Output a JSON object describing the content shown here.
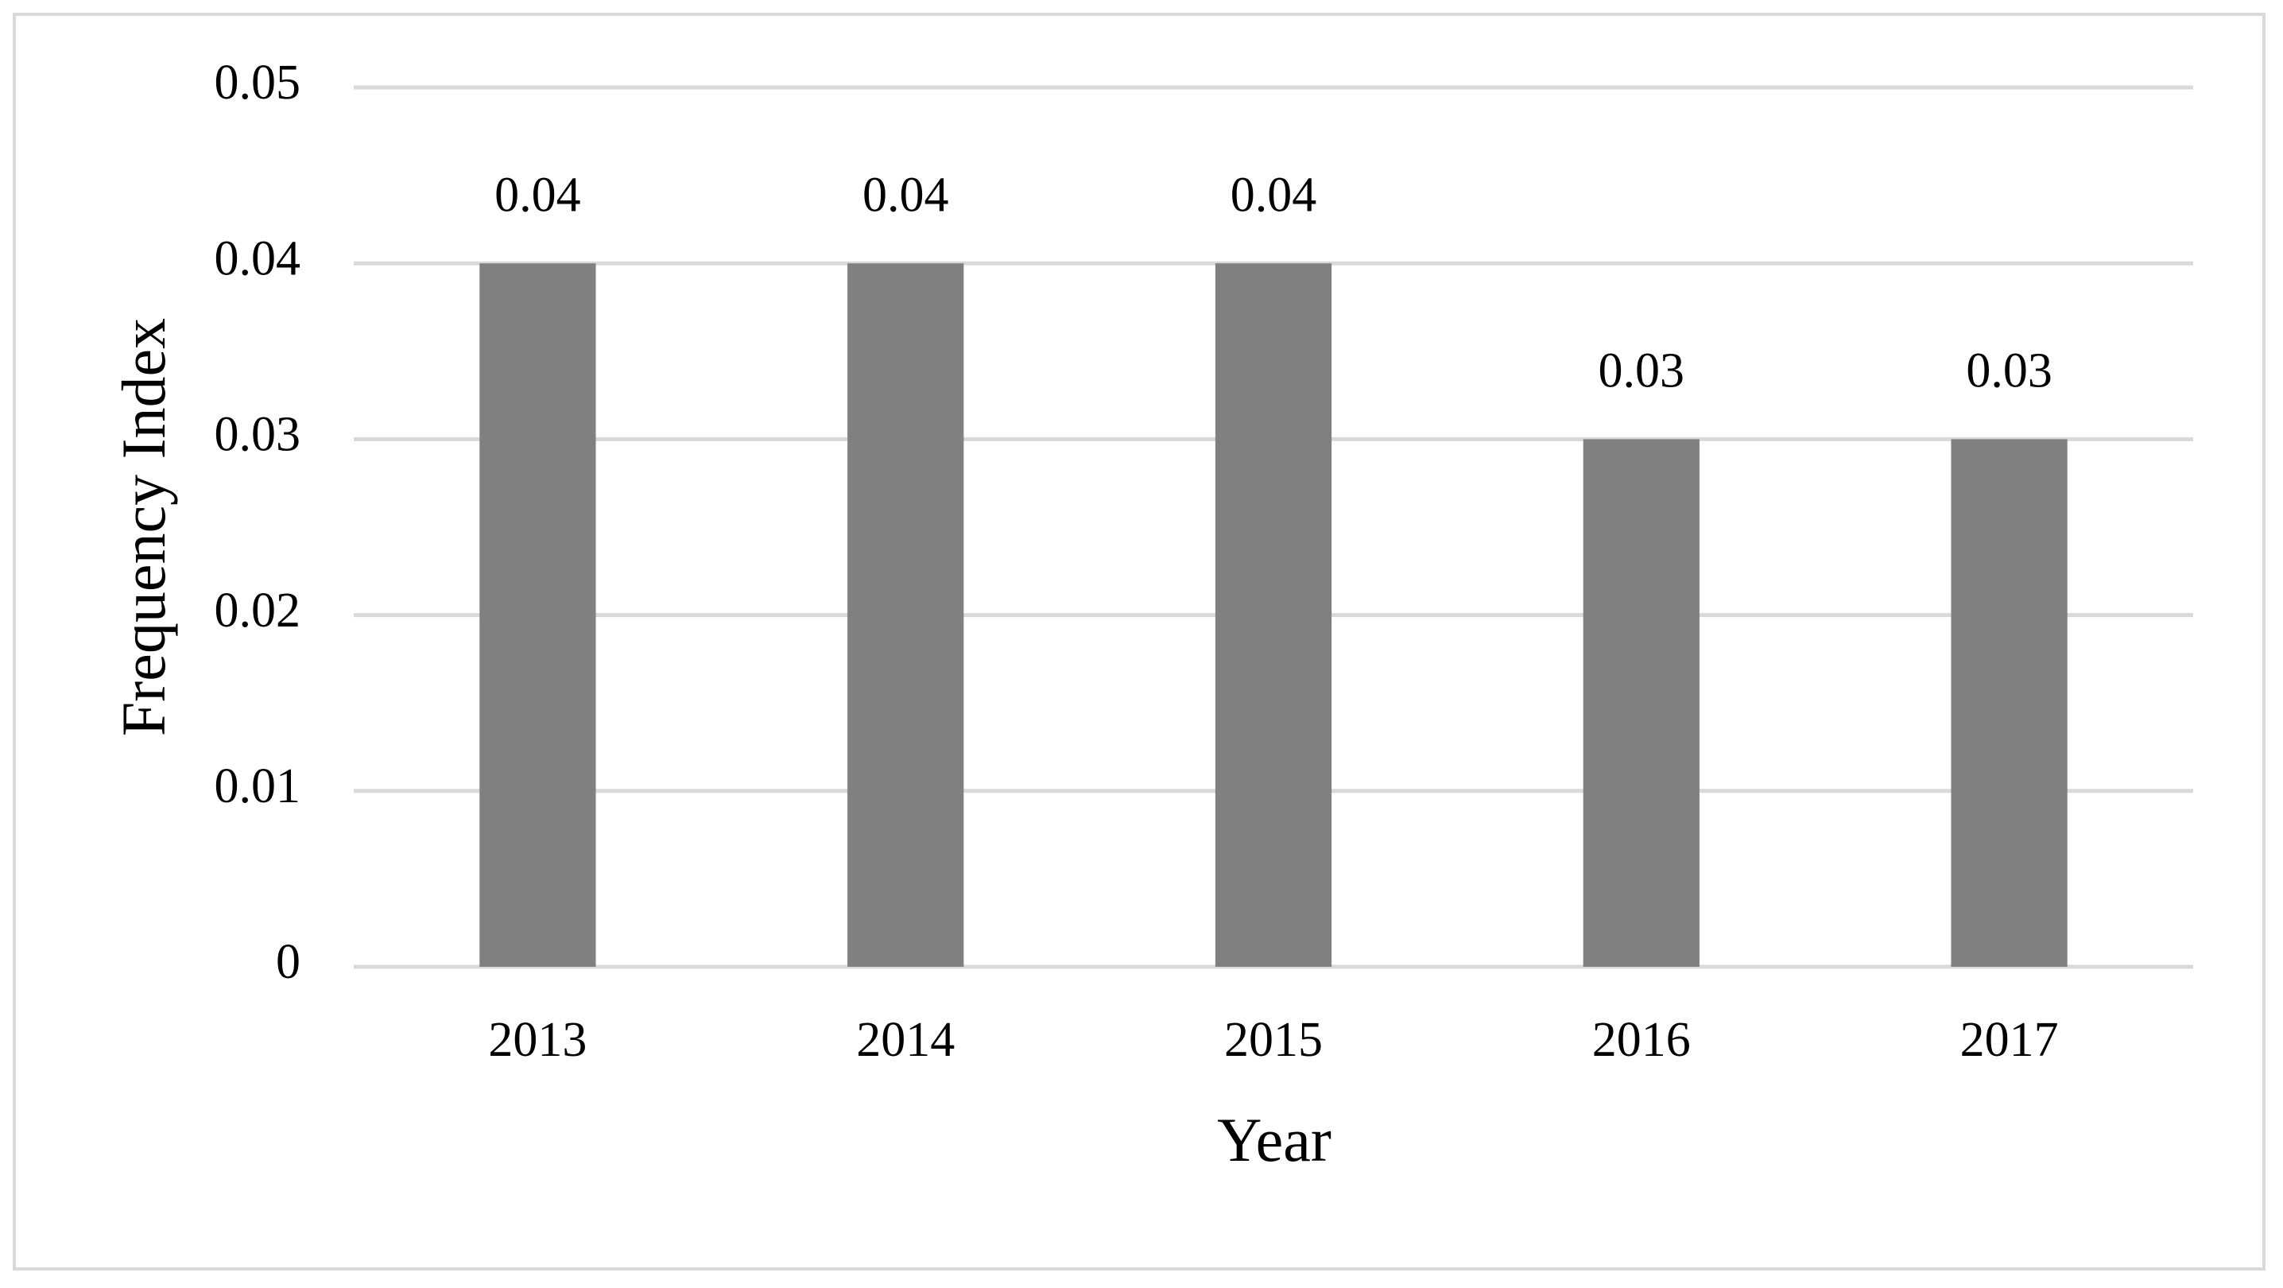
{
  "chart_data": {
    "type": "bar",
    "x_label": "Year",
    "y_label": "Frequency Index",
    "categories": [
      "2013",
      "2014",
      "2015",
      "2016",
      "2017"
    ],
    "values": [
      0.04,
      0.04,
      0.04,
      0.03,
      0.03
    ],
    "color": "#808080",
    "ylim": [
      0,
      0.05
    ],
    "yticks": [
      0,
      0.01,
      0.02,
      0.03,
      0.04,
      0.05
    ],
    "grid": true,
    "data_labels": true
  }
}
